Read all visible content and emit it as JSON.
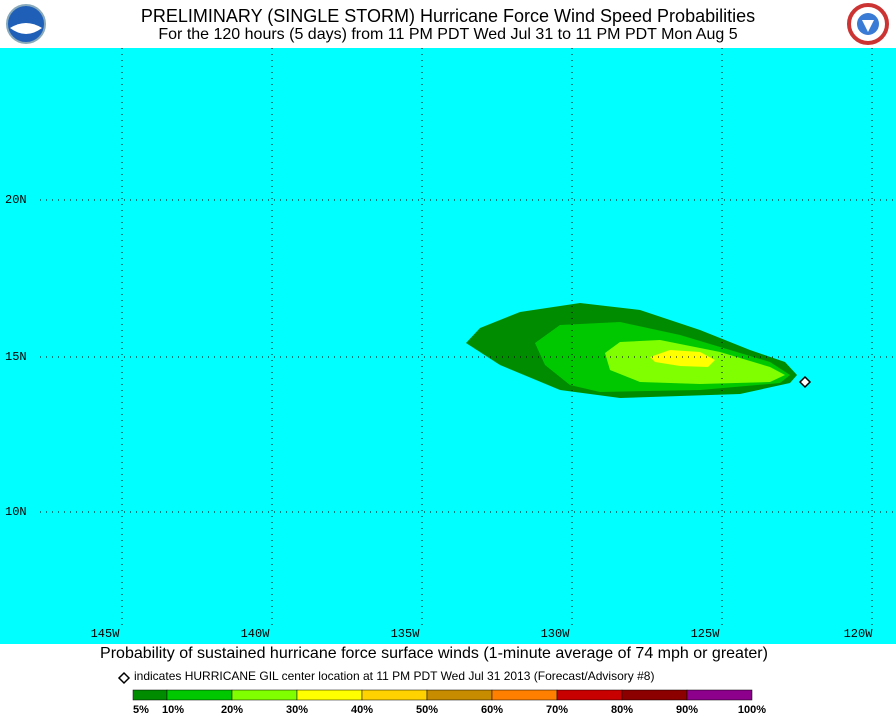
{
  "header": {
    "title": "PRELIMINARY (SINGLE STORM) Hurricane Force Wind Speed Probabilities",
    "subtitle": "For the 120 hours (5 days) from 11 PM PDT Wed Jul 31 to 11 PM PDT Mon Aug 5"
  },
  "map": {
    "lat_labels": [
      "20N",
      "15N",
      "10N"
    ],
    "lon_labels": [
      "145W",
      "140W",
      "135W",
      "130W",
      "125W",
      "120W"
    ]
  },
  "footer": {
    "caption": "Probability of sustained hurricane force surface winds (1-minute average of 74 mph or greater)",
    "note": "indicates HURRICANE GIL center location at 11 PM PDT Wed Jul 31 2013 (Forecast/Advisory #8)"
  },
  "legend": {
    "colors": [
      "#008c00",
      "#00c800",
      "#80ff00",
      "#ffff00",
      "#ffd200",
      "#c88c00",
      "#ff8000",
      "#c80000",
      "#8c0000",
      "#8c008c"
    ],
    "labels": [
      "5%",
      "10%",
      "20%",
      "30%",
      "40%",
      "50%",
      "60%",
      "70%",
      "80%",
      "90%",
      "100%"
    ]
  }
}
